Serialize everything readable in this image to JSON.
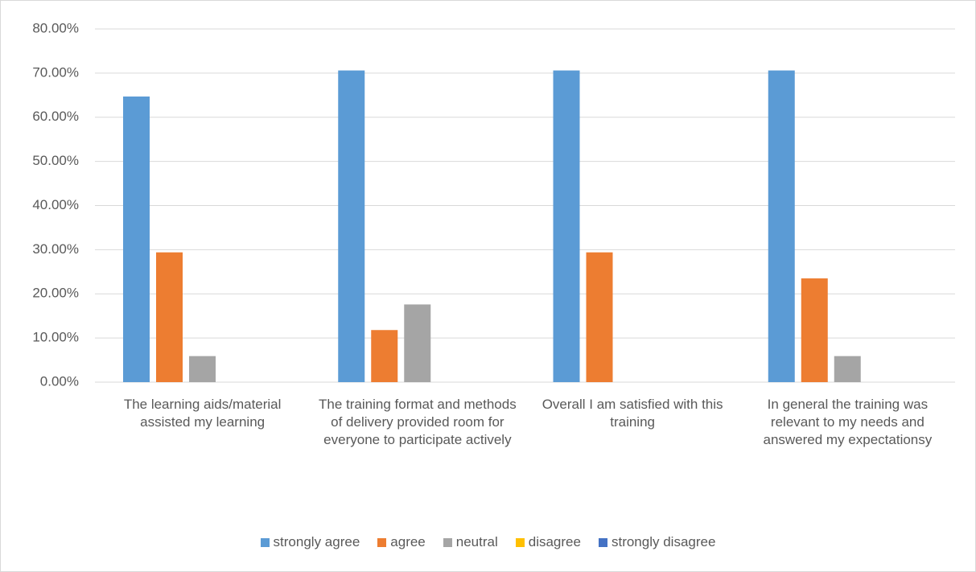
{
  "chart_data": {
    "type": "bar",
    "categories": [
      "The learning aids/material assisted my learning",
      "The training format and methods of delivery provided room for everyone to participate actively",
      "Overall I am satisfied with this training",
      "In general the training was relevant to my needs and answered my expectationsy"
    ],
    "series": [
      {
        "name": "strongly agree",
        "color": "#5b9bd5",
        "values": [
          64.7,
          70.6,
          70.6,
          70.6
        ]
      },
      {
        "name": "agree",
        "color": "#ed7d31",
        "values": [
          29.4,
          11.8,
          29.4,
          23.5
        ]
      },
      {
        "name": "neutral",
        "color": "#a5a5a5",
        "values": [
          5.9,
          17.6,
          0,
          5.9
        ]
      },
      {
        "name": "disagree",
        "color": "#ffc000",
        "values": [
          0,
          0,
          0,
          0
        ]
      },
      {
        "name": "strongly disagree",
        "color": "#4472c4",
        "values": [
          0,
          0,
          0,
          0
        ]
      }
    ],
    "ylim": [
      0,
      80
    ],
    "yticks": [
      {
        "value": 0,
        "label": "0.00%"
      },
      {
        "value": 10,
        "label": "10.00%"
      },
      {
        "value": 20,
        "label": "20.00%"
      },
      {
        "value": 30,
        "label": "30.00%"
      },
      {
        "value": 40,
        "label": "40.00%"
      },
      {
        "value": 50,
        "label": "50.00%"
      },
      {
        "value": 60,
        "label": "60.00%"
      },
      {
        "value": 70,
        "label": "70.00%"
      },
      {
        "value": 80,
        "label": "80.00%"
      }
    ],
    "grid": true,
    "legend": "bottom"
  }
}
